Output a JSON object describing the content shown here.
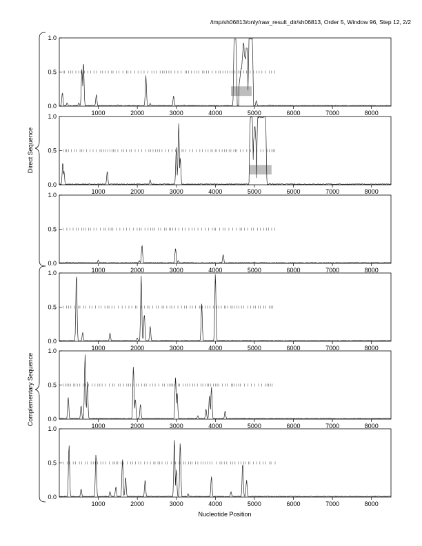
{
  "header": {
    "title": "/tmp/sh06813/only/raw_result_dir/sh06813, Order 5, Window 96, Step 12, 2/2"
  },
  "axes": {
    "xlabel": "Nucleotide Position",
    "group_labels": [
      "Direct Sequence",
      "Complementary Sequence"
    ],
    "x_ticks": [
      "1000",
      "2000",
      "3000",
      "4000",
      "5000",
      "6000",
      "7000",
      "8000"
    ],
    "y_ticks": [
      "0.0",
      "0.5",
      "1.0"
    ]
  },
  "chart_data": {
    "type": "line",
    "xlabel": "Nucleotide Position",
    "xlim": [
      1,
      8500
    ],
    "ylim": [
      0,
      1
    ],
    "x_ticks": [
      1000,
      2000,
      3000,
      4000,
      5000,
      6000,
      7000,
      8000
    ],
    "y_ticks": [
      0.0,
      0.5,
      1.0
    ],
    "stop_codon_marks_range": [
      100,
      5550
    ],
    "panels": [
      {
        "group": "Direct Sequence",
        "peaks": [
          [
            80,
            0.2
          ],
          [
            200,
            0.05
          ],
          [
            500,
            0.05
          ],
          [
            580,
            0.55
          ],
          [
            620,
            0.65
          ],
          [
            950,
            0.17
          ],
          [
            1500,
            0.02
          ],
          [
            2220,
            0.45
          ],
          [
            2330,
            0.04
          ],
          [
            2930,
            0.15
          ],
          [
            3200,
            0.02
          ]
        ],
        "plateaus": [
          [
            4450,
            4560,
            1.0
          ],
          [
            4830,
            4980,
            1.0
          ]
        ],
        "plateau_dips": [
          [
            4660,
            0.55
          ],
          [
            4720,
            0.92
          ],
          [
            4760,
            0.72
          ],
          [
            4800,
            0.85
          ]
        ],
        "tail_peaks": [
          [
            5050,
            0.08
          ],
          [
            5400,
            0.02
          ]
        ],
        "shaded_box": [
          4400,
          4930,
          0.15,
          0.29
        ]
      },
      {
        "group": "Direct Sequence",
        "peaks": [
          [
            90,
            0.33
          ],
          [
            120,
            0.2
          ],
          [
            1230,
            0.2
          ],
          [
            2330,
            0.07
          ],
          [
            3000,
            0.55
          ],
          [
            3060,
            0.9
          ],
          [
            3100,
            0.4
          ]
        ],
        "plateaus": [
          [
            4860,
            4980,
            1.0
          ],
          [
            5050,
            5320,
            1.0
          ]
        ],
        "plateau_dips": [
          [
            5010,
            0.85
          ]
        ],
        "tail_peaks": [
          [
            5400,
            0.02
          ]
        ],
        "shaded_box": [
          4860,
          5440,
          0.15,
          0.29
        ]
      },
      {
        "group": "Direct Sequence",
        "peaks": [
          [
            200,
            0.02
          ],
          [
            1000,
            0.05
          ],
          [
            2050,
            0.04
          ],
          [
            2120,
            0.27
          ],
          [
            2980,
            0.22
          ],
          [
            3050,
            0.04
          ],
          [
            4200,
            0.13
          ],
          [
            5000,
            0.02
          ]
        ]
      },
      {
        "group": "Complementary Sequence",
        "peaks": [
          [
            440,
            1.0
          ],
          [
            600,
            0.13
          ],
          [
            1300,
            0.12
          ],
          [
            2000,
            0.05
          ],
          [
            2100,
            0.96
          ],
          [
            2180,
            0.4
          ],
          [
            2330,
            0.22
          ],
          [
            3650,
            0.55
          ],
          [
            4000,
            1.0
          ]
        ]
      },
      {
        "group": "Complementary Sequence",
        "peaks": [
          [
            230,
            0.32
          ],
          [
            560,
            0.2
          ],
          [
            660,
            0.95
          ],
          [
            720,
            0.55
          ],
          [
            1900,
            0.78
          ],
          [
            1950,
            0.3
          ],
          [
            2080,
            0.22
          ],
          [
            2980,
            0.62
          ],
          [
            3020,
            0.4
          ],
          [
            3550,
            0.05
          ],
          [
            3760,
            0.15
          ],
          [
            3850,
            0.35
          ],
          [
            3900,
            0.47
          ],
          [
            4250,
            0.12
          ]
        ]
      },
      {
        "group": "Complementary Sequence",
        "peaks": [
          [
            250,
            0.77
          ],
          [
            560,
            0.12
          ],
          [
            940,
            0.63
          ],
          [
            1300,
            0.08
          ],
          [
            1450,
            0.15
          ],
          [
            1620,
            0.55
          ],
          [
            1700,
            0.3
          ],
          [
            2200,
            0.25
          ],
          [
            2950,
            0.85
          ],
          [
            3000,
            0.4
          ],
          [
            3100,
            0.8
          ],
          [
            3300,
            0.05
          ],
          [
            3900,
            0.3
          ],
          [
            4400,
            0.08
          ],
          [
            4700,
            0.5
          ],
          [
            4800,
            0.25
          ]
        ]
      }
    ]
  }
}
